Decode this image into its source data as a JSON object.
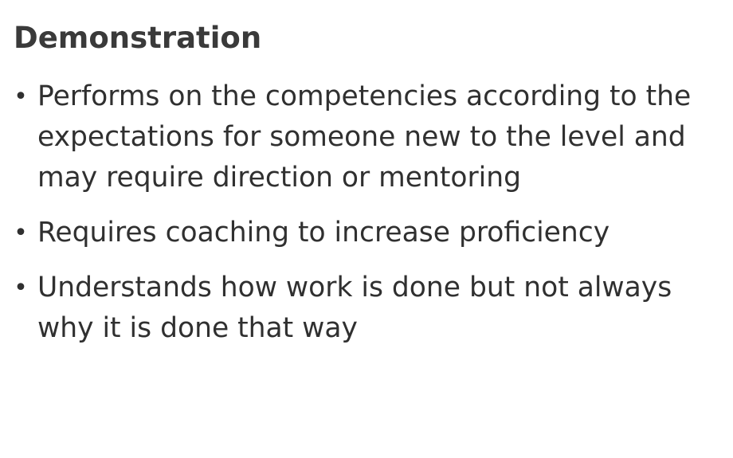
{
  "slide": {
    "title": "Demonstration",
    "bullet_glyph": "•",
    "bullets": [
      "Performs on the competencies according to the expectations for someone new to the level and may require direction or mentoring",
      "Requires coaching to increase proficiency",
      "Understands how work is done but not always why it is done that way"
    ]
  }
}
